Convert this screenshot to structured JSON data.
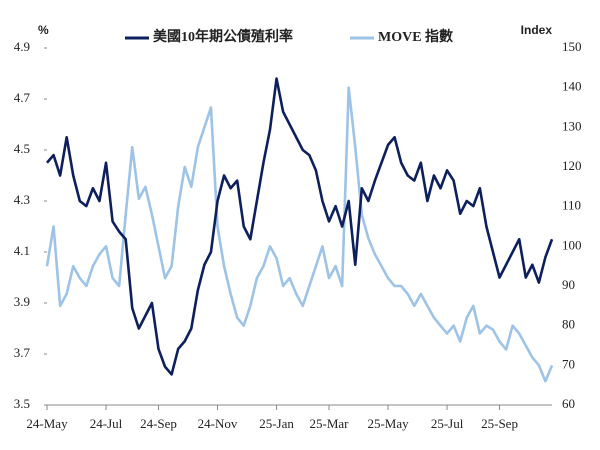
{
  "chart_data": {
    "type": "line",
    "y_label": "%",
    "y2_label": "Index",
    "categories": [
      "24-May",
      null,
      null,
      null,
      null,
      null,
      null,
      null,
      null,
      "24-Jul",
      null,
      null,
      null,
      null,
      null,
      null,
      null,
      "24-Sep",
      null,
      null,
      null,
      null,
      null,
      null,
      null,
      null,
      "24-Nov",
      null,
      null,
      null,
      null,
      null,
      null,
      null,
      null,
      "25-Jan",
      null,
      null,
      null,
      null,
      null,
      null,
      null,
      "25-Mar",
      null,
      null,
      null,
      null,
      null,
      null,
      null,
      null,
      "25-May",
      null,
      null,
      null,
      null,
      null,
      null,
      null,
      null,
      "25-Jul",
      null,
      null,
      null,
      null,
      null,
      null,
      null,
      "25-Sep",
      null,
      null,
      null,
      null,
      null,
      null,
      null,
      null
    ],
    "ylim": [
      3.5,
      4.9
    ],
    "yticks": [
      3.5,
      3.7,
      3.9,
      4.1,
      4.3,
      4.5,
      4.7,
      4.9
    ],
    "y2lim": [
      60,
      150
    ],
    "y2ticks": [
      60,
      70,
      80,
      90,
      100,
      110,
      120,
      130,
      140,
      150
    ],
    "legend": "top",
    "series": [
      {
        "name": "美國10年期公債殖利率",
        "color": "#0d1f5c",
        "axis": "y",
        "values": [
          4.45,
          4.48,
          4.4,
          4.55,
          4.4,
          4.3,
          4.28,
          4.35,
          4.3,
          4.45,
          4.22,
          4.18,
          4.15,
          3.88,
          3.8,
          3.85,
          3.9,
          3.72,
          3.65,
          3.62,
          3.72,
          3.75,
          3.8,
          3.95,
          4.05,
          4.1,
          4.3,
          4.4,
          4.35,
          4.38,
          4.2,
          4.15,
          4.3,
          4.45,
          4.58,
          4.78,
          4.65,
          4.6,
          4.55,
          4.5,
          4.48,
          4.42,
          4.3,
          4.22,
          4.28,
          4.2,
          4.3,
          4.05,
          4.35,
          4.3,
          4.38,
          4.45,
          4.52,
          4.55,
          4.45,
          4.4,
          4.38,
          4.45,
          4.3,
          4.4,
          4.35,
          4.42,
          4.38,
          4.25,
          4.3,
          4.28,
          4.35,
          4.2,
          4.1,
          4.0,
          4.05,
          4.1,
          4.15,
          4.0,
          4.05,
          3.98,
          4.08,
          4.15
        ]
      },
      {
        "name": "MOVE 指數",
        "color": "#9dc3e6",
        "axis": "y2",
        "values": [
          95,
          105,
          85,
          88,
          95,
          92,
          90,
          95,
          98,
          100,
          92,
          90,
          108,
          125,
          112,
          115,
          108,
          100,
          92,
          95,
          110,
          120,
          115,
          125,
          130,
          135,
          105,
          95,
          88,
          82,
          80,
          85,
          92,
          95,
          100,
          97,
          90,
          92,
          88,
          85,
          90,
          95,
          100,
          92,
          95,
          90,
          140,
          125,
          108,
          102,
          98,
          95,
          92,
          90,
          90,
          88,
          85,
          88,
          85,
          82,
          80,
          78,
          80,
          76,
          82,
          85,
          78,
          80,
          79,
          76,
          74,
          80,
          78,
          75,
          72,
          70,
          66,
          70
        ]
      }
    ]
  }
}
